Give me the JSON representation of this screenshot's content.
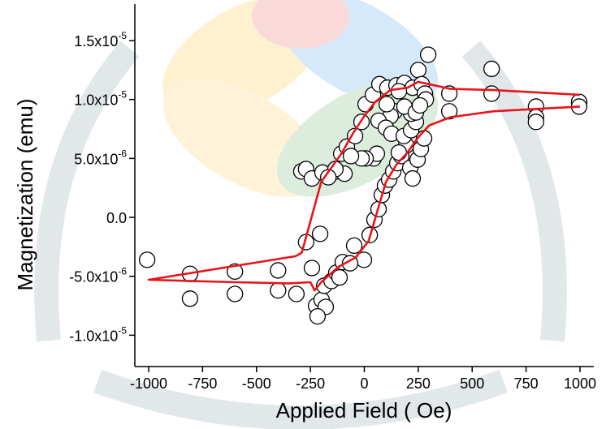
{
  "chart_data": {
    "type": "scatter",
    "x_label": "Applied Field ( Oe)",
    "y_label": "Magnetization (emu)",
    "xlim": [
      -1064,
      1064
    ],
    "ylim": [
      -1.266e-05,
      1.81e-05
    ],
    "xticks": [
      -1000,
      -750,
      -500,
      -250,
      0,
      250,
      500,
      750,
      1000
    ],
    "yticks": [
      {
        "value": -1e-05,
        "label": "-1.0x10",
        "label_exp": "-5"
      },
      {
        "value": -5e-06,
        "label": "-5.0x10",
        "label_exp": "-6"
      },
      {
        "value": 0,
        "label": "0.0"
      },
      {
        "value": 5e-06,
        "label": "5.0x10",
        "label_exp": "-6"
      },
      {
        "value": 1e-05,
        "label": "1.0x10",
        "label_exp": "-5"
      },
      {
        "value": 1.5e-05,
        "label": "1.5x10",
        "label_exp": "-5"
      }
    ],
    "marker_color": "#000000",
    "scatter": {
      "x": [
        -1007,
        -808,
        -808,
        -600,
        -600,
        -400,
        -400,
        -315,
        -270,
        -243,
        -224,
        -198,
        -179,
        -217,
        -186,
        -152,
        -130,
        -205,
        -292,
        -270,
        -243,
        -194,
        -130,
        -107,
        -81,
        -43,
        -13,
        6,
        40,
        70,
        107,
        149,
        186,
        224,
        250,
        296,
        266,
        281,
        285,
        160,
        141,
        122,
        104,
        66,
        100,
        126,
        43,
        58,
        6,
        -13,
        -62,
        -92,
        -134,
        -167,
        394,
        394,
        590,
        590,
        796,
        796,
        796,
        996,
        996,
        -2,
        -47,
        -100,
        -115,
        -66,
        25,
        47,
        66,
        81,
        96,
        115,
        134,
        153,
        171,
        194,
        213,
        224,
        247,
        262,
        277,
        160,
        183,
        217,
        239,
        217,
        186,
        239,
        258
      ],
      "y": [
        -3.6e-06,
        -4.8e-06,
        -6.9e-06,
        -4.6e-06,
        -6.5e-06,
        -4.5e-06,
        -6.2e-06,
        -6.5e-06,
        -2.1e-06,
        -4.3e-06,
        -7.5e-06,
        -7e-06,
        -7.6e-06,
        -8.4e-06,
        -5.8e-06,
        -5.4e-06,
        -4.7e-06,
        -1.4e-06,
        3.9e-06,
        4.1e-06,
        3.3e-06,
        3.8e-06,
        3.9e-06,
        5.4e-06,
        6e-06,
        6.9e-06,
        8.1e-06,
        9.6e-06,
        1.04e-05,
        1.13e-05,
        1.1e-05,
        1.12e-05,
        1.14e-05,
        1.1e-05,
        1.25e-05,
        1.38e-05,
        1.13e-05,
        1.05e-05,
        1e-05,
        1.07e-05,
        9e-06,
        8.6e-06,
        9.6e-06,
        8.2e-06,
        7.6e-06,
        7.1e-06,
        5e-06,
        5.4e-06,
        5e-06,
        5e-06,
        5.2e-06,
        3.7e-06,
        4.1e-06,
        3.4e-06,
        1.05e-05,
        9e-06,
        1.26e-05,
        1.05e-05,
        9.4e-06,
        8.5e-06,
        8.1e-06,
        9.8e-06,
        9.4e-06,
        -3.6e-06,
        -2.4e-06,
        -3.8e-06,
        -5.1e-06,
        -3.9e-06,
        -1.5e-06,
        -2e-07,
        7e-07,
        1.9e-06,
        2.7e-06,
        3.2e-06,
        3.9e-06,
        4.6e-06,
        5.2e-06,
        6.1e-06,
        4.2e-06,
        3.3e-06,
        4.9e-06,
        5.8e-06,
        6.7e-06,
        5.5e-06,
        6.9e-06,
        7.4e-06,
        8.1e-06,
        8.8e-06,
        9.4e-06,
        8.9e-06,
        9.5e-06
      ]
    },
    "line": {
      "color": "#e8141b",
      "x": [
        1000,
        600,
        400,
        300,
        250,
        200,
        120,
        50,
        0,
        -50,
        -107,
        -200,
        -245,
        -290,
        -320,
        -1000,
        -600,
        -350,
        -250,
        -230,
        -200,
        -120,
        -40,
        20,
        60,
        100,
        150,
        200,
        250,
        300,
        400,
        600,
        1000
      ],
      "y": [
        1.04e-05,
        1.08e-05,
        1.09e-05,
        1.13e-05,
        1.15e-05,
        1.1e-05,
        1.08e-05,
        9.8e-06,
        8.6e-06,
        7.2e-06,
        5.4e-06,
        3e-06,
        0,
        -3e-06,
        -3.3e-06,
        -5.3e-06,
        -5.5e-06,
        -5.6e-06,
        -5.5e-06,
        -6.2e-06,
        -5.5e-06,
        -4.2e-06,
        -3.4e-06,
        -2e-06,
        5e-07,
        3e-06,
        4.5e-06,
        5.5e-06,
        6.8e-06,
        7.8e-06,
        8.5e-06,
        9e-06,
        9.4e-06
      ]
    }
  }
}
